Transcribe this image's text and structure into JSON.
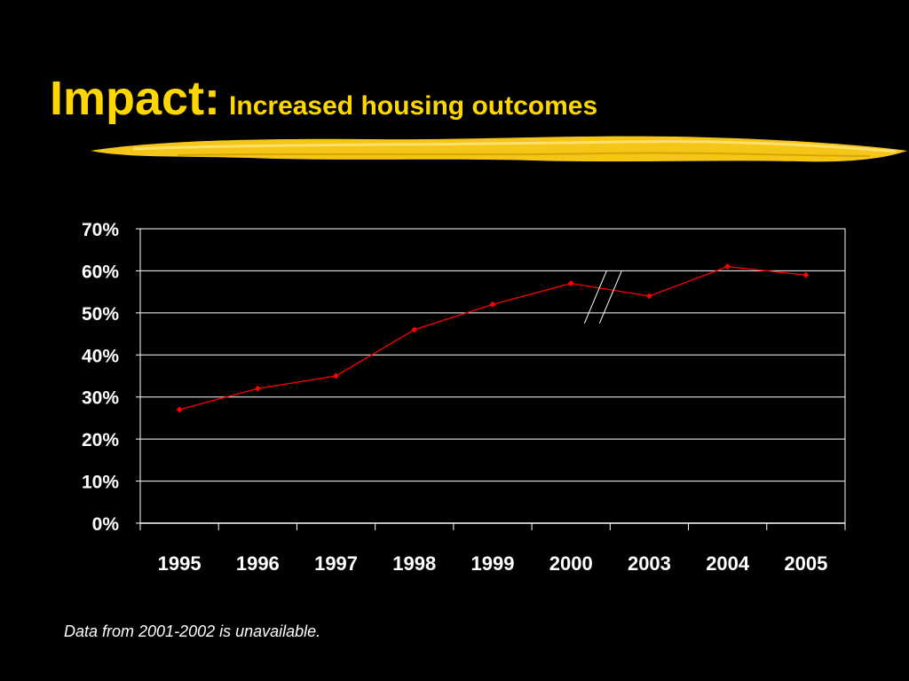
{
  "slide": {
    "title": "Impact:",
    "subtitle": "Increased housing outcomes",
    "footnote": "Data from 2001-2002 is unavailable."
  },
  "colors": {
    "background": "#000000",
    "title": "#FFD700",
    "brush": "#F5C518",
    "series": "#FF0000",
    "gridline": "#FFFFFF",
    "text": "#FFFFFF"
  },
  "chart_data": {
    "type": "line",
    "title": "",
    "xlabel": "",
    "ylabel": "",
    "categories": [
      "1995",
      "1996",
      "1997",
      "1998",
      "1999",
      "2000",
      "2003",
      "2004",
      "2005"
    ],
    "series": [
      {
        "values": [
          0.27,
          0.32,
          0.35,
          0.46,
          0.52,
          0.57,
          0.54,
          0.61,
          0.59
        ]
      }
    ],
    "ylim": [
      0,
      0.7
    ],
    "yticks": [
      0,
      0.1,
      0.2,
      0.3,
      0.4,
      0.5,
      0.6,
      0.7
    ],
    "ytick_labels": [
      "0%",
      "10%",
      "20%",
      "30%",
      "40%",
      "50%",
      "60%",
      "70%"
    ],
    "grid": true,
    "legend": false,
    "axis_break_between": [
      "2000",
      "2003"
    ]
  }
}
